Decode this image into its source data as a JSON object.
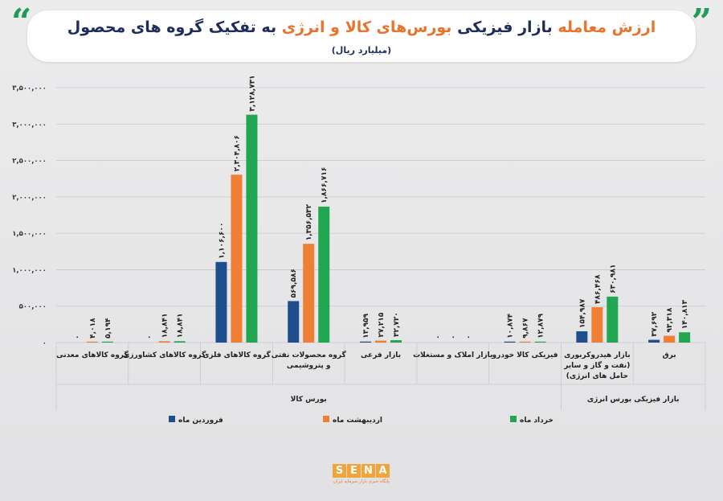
{
  "title": {
    "part1": "ارزش معامله",
    "part2": "بازار فیزیکی",
    "part3": "بورس‌های کالا و انرژی",
    "part4": "به تفکیک گروه های محصول",
    "subtitle": "(میلیارد ریال)"
  },
  "colors": {
    "farvardin": "#1f4e8c",
    "ordibehesht": "#ef7f35",
    "khordad": "#21a651",
    "quote": "#1d9c5a",
    "title_orange": "#e8732c",
    "title_navy": "#1d2c5a"
  },
  "logo": {
    "letters": [
      "S",
      "E",
      "N",
      "A"
    ],
    "subtitle": "پایگاه خبری بازار سرمایه ایران"
  },
  "chart_data": {
    "type": "bar",
    "title": "ارزش معامله بازار فیزیکی بورس‌های کالا و انرژی به تفکیک گروه های محصول",
    "subtitle": "(میلیارد ریال)",
    "ylim": [
      0,
      3500000
    ],
    "yticks": [
      0,
      500000,
      1000000,
      1500000,
      2000000,
      2500000,
      3000000,
      3500000
    ],
    "ytick_labels": [
      "۰",
      "۵۰۰,۰۰۰",
      "۱,۰۰۰,۰۰۰",
      "۱,۵۰۰,۰۰۰",
      "۲,۰۰۰,۰۰۰",
      "۲,۵۰۰,۰۰۰",
      "۳,۰۰۰,۰۰۰",
      "۳,۵۰۰,۰۰۰"
    ],
    "grid": true,
    "legend_position": "bottom",
    "categories": [
      "گروه کالاهای معدنی",
      "گروه کالاهای کشاورزی",
      "گروه کالاهای فلزی",
      "گروه محصولات نفتی و پتروشیمی",
      "بازار فرعی",
      "بازار املاک و مستغلات",
      "فیزیکی کالا خودرو",
      "بازار هیدروکربوری (نفت و گاز و سایر حامل های انرژی)",
      "برق"
    ],
    "category_lines": [
      [
        "گروه کالاهای معدنی"
      ],
      [
        "گروه کالاهای کشاورزی"
      ],
      [
        "گروه کالاهای فلزی"
      ],
      [
        "گروه محصولات نفتی",
        "و پتروشیمی"
      ],
      [
        "بازار فرعی"
      ],
      [
        "بازار املاک و مستغلات"
      ],
      [
        "فیزیکی کالا خودرو"
      ],
      [
        "بازار هیدروکربوری",
        "(نفت و گاز و سایر",
        "حامل های انرژی)"
      ],
      [
        "برق"
      ]
    ],
    "groups": [
      {
        "label": "بورس کالا",
        "from": 0,
        "to": 6
      },
      {
        "label": "بازار فیزیکی بورس انرژی",
        "from": 7,
        "to": 8
      }
    ],
    "series": [
      {
        "name": "فروردین ماه",
        "values": [
          0,
          0,
          1106600,
          569586,
          13959,
          0,
          10874,
          154987,
          37692
        ],
        "labels": [
          "۰",
          "۰",
          "۱,۱۰۶,۶۰۰",
          "۵۶۹,۵۸۶",
          "۱۳,۹۵۹",
          "۰",
          "۱۰,۸۷۴",
          "۱۵۴,۹۸۷",
          "۳۷,۶۹۲"
        ]
      },
      {
        "name": "اردیبهشت ماه",
        "values": [
          4018,
          18841,
          2304806,
          1356532,
          27215,
          0,
          9867,
          486468,
          93318
        ],
        "labels": [
          "۴,۰۱۸",
          "۱۸,۸۴۱",
          "۲,۳۰۴,۸۰۶",
          "۱,۳۵۶,۵۳۲",
          "۲۷,۲۱۵",
          "۰",
          "۹,۸۶۷",
          "۴۸۶,۴۶۸",
          "۹۳,۳۱۸"
        ]
      },
      {
        "name": "خرداد ماه",
        "values": [
          5194,
          18841,
          3128731,
          1866716,
          32720,
          0,
          12879,
          630981,
          140813
        ],
        "labels": [
          "۵,۱۹۴",
          "۱۸,۸۴۱",
          "۳,۱۲۸,۷۳۱",
          "۱,۸۶۶,۷۱۶",
          "۳۲,۷۲۰",
          "۰",
          "۱۲,۸۷۹",
          "۶۳۰,۹۸۱",
          "۱۴۰,۸۱۳"
        ]
      }
    ]
  }
}
